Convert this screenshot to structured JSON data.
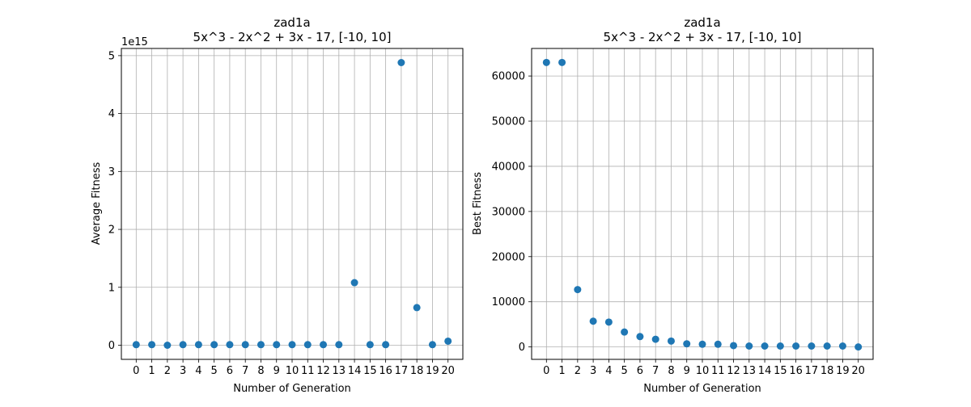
{
  "chart_data": [
    {
      "type": "scatter",
      "title": "zad1a",
      "subtitle": "5x^3 - 2x^2 + 3x - 17, [-10, 10]",
      "xlabel": "Number of Generation",
      "ylabel": "Average Fitness",
      "y_offset_label": "1e15",
      "x": [
        0,
        1,
        2,
        3,
        4,
        5,
        6,
        7,
        8,
        9,
        10,
        11,
        12,
        13,
        14,
        15,
        16,
        17,
        18,
        19,
        20
      ],
      "y": [
        0.01,
        0.01,
        0.0,
        0.01,
        0.01,
        0.01,
        0.01,
        0.01,
        0.01,
        0.01,
        0.01,
        0.01,
        0.01,
        0.01,
        1.08,
        0.01,
        0.01,
        4.88,
        0.65,
        0.01,
        0.07
      ],
      "xticks": [
        "0",
        "1",
        "2",
        "3",
        "4",
        "5",
        "6",
        "7",
        "8",
        "9",
        "10",
        "11",
        "12",
        "13",
        "14",
        "15",
        "16",
        "17",
        "18",
        "19",
        "20"
      ],
      "yticks": [
        0,
        1,
        2,
        3,
        4,
        5
      ],
      "xlim": [
        -0.95,
        20.95
      ],
      "ylim": [
        -0.244,
        5.124
      ],
      "grid": true,
      "color": "#1f77b4"
    },
    {
      "type": "scatter",
      "title": "zad1a",
      "subtitle": "5x^3 - 2x^2 + 3x - 17, [-10, 10]",
      "xlabel": "Number of Generation",
      "ylabel": "Best Fitness",
      "x": [
        0,
        1,
        2,
        3,
        4,
        5,
        6,
        7,
        8,
        9,
        10,
        11,
        12,
        13,
        14,
        15,
        16,
        17,
        18,
        19,
        20
      ],
      "y": [
        63000,
        63000,
        12700,
        5700,
        5500,
        3300,
        2300,
        1700,
        1300,
        700,
        600,
        600,
        300,
        200,
        200,
        200,
        200,
        200,
        200,
        200,
        0
      ],
      "xticks": [
        "0",
        "1",
        "2",
        "3",
        "4",
        "5",
        "6",
        "7",
        "8",
        "9",
        "10",
        "11",
        "12",
        "13",
        "14",
        "15",
        "16",
        "17",
        "18",
        "19",
        "20"
      ],
      "yticks": [
        0,
        10000,
        20000,
        30000,
        40000,
        50000,
        60000
      ],
      "xlim": [
        -0.95,
        20.95
      ],
      "ylim": [
        -2750,
        66100
      ],
      "grid": true,
      "color": "#1f77b4"
    }
  ]
}
